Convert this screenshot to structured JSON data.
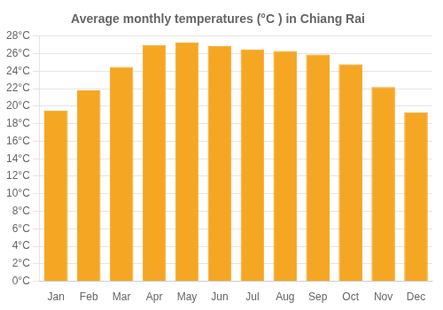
{
  "chart_data": {
    "type": "bar",
    "title": "Average monthly temperatures (°C ) in Chiang Rai",
    "categories": [
      "Jan",
      "Feb",
      "Mar",
      "Apr",
      "May",
      "Jun",
      "Jul",
      "Aug",
      "Sep",
      "Oct",
      "Nov",
      "Dec"
    ],
    "values": [
      19.5,
      21.8,
      24.5,
      27.0,
      27.3,
      26.9,
      26.5,
      26.3,
      25.9,
      24.8,
      22.2,
      19.3
    ],
    "color": "#F5A623",
    "ylim": [
      0,
      28
    ],
    "yticks": [
      {
        "value": 0,
        "label": "0°C"
      },
      {
        "value": 2,
        "label": "2°C"
      },
      {
        "value": 4,
        "label": "4°C"
      },
      {
        "value": 6,
        "label": "6°C"
      },
      {
        "value": 8,
        "label": "8°C"
      },
      {
        "value": 10,
        "label": "10°C"
      },
      {
        "value": 12,
        "label": "12°C"
      },
      {
        "value": 14,
        "label": "14°C"
      },
      {
        "value": 16,
        "label": "16°C"
      },
      {
        "value": 18,
        "label": "18°C"
      },
      {
        "value": 20,
        "label": "20°C"
      },
      {
        "value": 22,
        "label": "22°C"
      },
      {
        "value": 24,
        "label": "24°C"
      },
      {
        "value": 26,
        "label": "26°C"
      },
      {
        "value": 28,
        "label": "28°C"
      }
    ],
    "grid": true
  }
}
